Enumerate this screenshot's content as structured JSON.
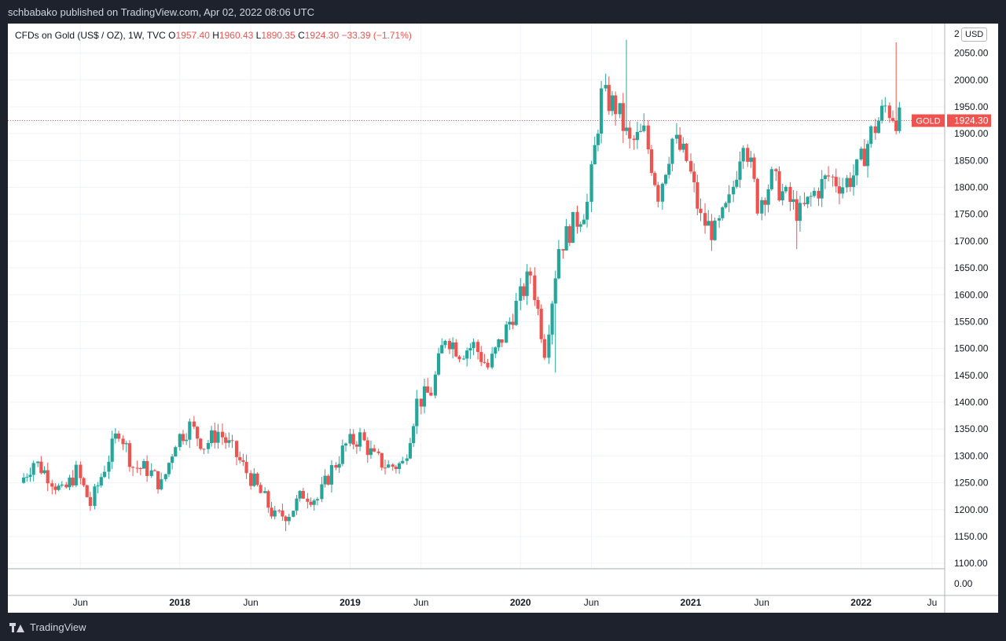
{
  "header": {
    "publisher": "schbabako published on TradingView.com, Apr 02, 2022 08:06 UTC"
  },
  "legend": {
    "symbol": "CFDs on Gold (US$ / OZ), 1W, TVC",
    "o_label": "O",
    "o_value": "1957.40",
    "h_label": "H",
    "h_value": "1960.43",
    "l_label": "L",
    "l_value": "1890.35",
    "c_label": "C",
    "c_value": "1924.30",
    "change": "−33.39 (−1.71%)"
  },
  "currency_button": "USD",
  "footer": {
    "brand": "TradingView"
  },
  "colors": {
    "up": "#26a69a",
    "down": "#ef5350",
    "grid": "#f0f3fa",
    "axis_text": "#131722",
    "price_line": "#ef5350"
  },
  "chart_data": {
    "type": "candlestick",
    "timeframe": "1W",
    "price_axis": {
      "ticks": [
        "1100.00",
        "1150.00",
        "1200.00",
        "1250.00",
        "1300.00",
        "1350.00",
        "1400.00",
        "1450.00",
        "1500.00",
        "1550.00",
        "1600.00",
        "1650.00",
        "1700.00",
        "1750.00",
        "1800.00",
        "1850.00",
        "1900.00",
        "1950.00",
        "2000.00",
        "2050.00"
      ],
      "top_partial": "2 0",
      "volume_tick": "0.00",
      "range": [
        1090,
        2105
      ]
    },
    "time_axis": {
      "labels": [
        {
          "label": "Jun",
          "date": "2017-06",
          "bold": false
        },
        {
          "label": "2018",
          "date": "2018-01",
          "bold": true
        },
        {
          "label": "Jun",
          "date": "2018-06",
          "bold": false
        },
        {
          "label": "2019",
          "date": "2019-01",
          "bold": true
        },
        {
          "label": "Jun",
          "date": "2019-06",
          "bold": false
        },
        {
          "label": "2020",
          "date": "2020-01",
          "bold": true
        },
        {
          "label": "Jun",
          "date": "2020-06",
          "bold": false
        },
        {
          "label": "2021",
          "date": "2021-01",
          "bold": true
        },
        {
          "label": "Jun",
          "date": "2021-06",
          "bold": false
        },
        {
          "label": "2022",
          "date": "2022-01",
          "bold": true
        },
        {
          "label": "Ju",
          "date": "2022-06",
          "bold": false
        }
      ]
    },
    "last_price": {
      "label": "GOLD",
      "value": "1924.30",
      "price": 1924.3
    },
    "close_path": [
      [
        "2017-02",
        1250
      ],
      [
        "2017-03",
        1290
      ],
      [
        "2017-04",
        1265
      ],
      [
        "2017-05",
        1230
      ],
      [
        "2017-06",
        1270
      ],
      [
        "2017-07",
        1210
      ],
      [
        "2017-08",
        1280
      ],
      [
        "2017-09",
        1350
      ],
      [
        "2017-10",
        1280
      ],
      [
        "2017-11",
        1275
      ],
      [
        "2017-12",
        1245
      ],
      [
        "2018-01",
        1330
      ],
      [
        "2018-02",
        1355
      ],
      [
        "2018-03",
        1320
      ],
      [
        "2018-04",
        1345
      ],
      [
        "2018-05",
        1310
      ],
      [
        "2018-06",
        1270
      ],
      [
        "2018-07",
        1230
      ],
      [
        "2018-08",
        1185
      ],
      [
        "2018-09",
        1195
      ],
      [
        "2018-10",
        1230
      ],
      [
        "2018-11",
        1220
      ],
      [
        "2018-12",
        1275
      ],
      [
        "2019-01",
        1320
      ],
      [
        "2019-02",
        1335
      ],
      [
        "2019-03",
        1295
      ],
      [
        "2019-04",
        1280
      ],
      [
        "2019-05",
        1285
      ],
      [
        "2019-06",
        1400
      ],
      [
        "2019-07",
        1420
      ],
      [
        "2019-08",
        1525
      ],
      [
        "2019-09",
        1495
      ],
      [
        "2019-10",
        1505
      ],
      [
        "2019-11",
        1465
      ],
      [
        "2019-12",
        1520
      ],
      [
        "2020-01",
        1580
      ],
      [
        "2020-02",
        1640
      ],
      [
        "2020-03",
        1500
      ],
      [
        "2020-04",
        1690
      ],
      [
        "2020-05",
        1730
      ],
      [
        "2020-06",
        1770
      ],
      [
        "2020-07",
        1970
      ],
      [
        "2020-08",
        1950
      ],
      [
        "2020-09",
        1880
      ],
      [
        "2020-10",
        1900
      ],
      [
        "2020-11",
        1790
      ],
      [
        "2020-12",
        1890
      ],
      [
        "2021-01",
        1850
      ],
      [
        "2021-02",
        1740
      ],
      [
        "2021-03",
        1715
      ],
      [
        "2021-04",
        1770
      ],
      [
        "2021-05",
        1900
      ],
      [
        "2021-06",
        1770
      ],
      [
        "2021-07",
        1815
      ],
      [
        "2021-08",
        1780
      ],
      [
        "2021-09",
        1750
      ],
      [
        "2021-10",
        1790
      ],
      [
        "2021-11",
        1820
      ],
      [
        "2021-12",
        1805
      ],
      [
        "2022-01",
        1830
      ],
      [
        "2022-02",
        1900
      ],
      [
        "2022-03",
        1950
      ],
      [
        "2022-04",
        1924
      ]
    ],
    "spikes": [
      {
        "date": "2020-08",
        "high": 2075
      },
      {
        "date": "2022-03",
        "high": 2070
      },
      {
        "date": "2021-08",
        "low": 1685
      },
      {
        "date": "2020-03",
        "low": 1455
      },
      {
        "date": "2018-08",
        "low": 1160
      }
    ]
  }
}
